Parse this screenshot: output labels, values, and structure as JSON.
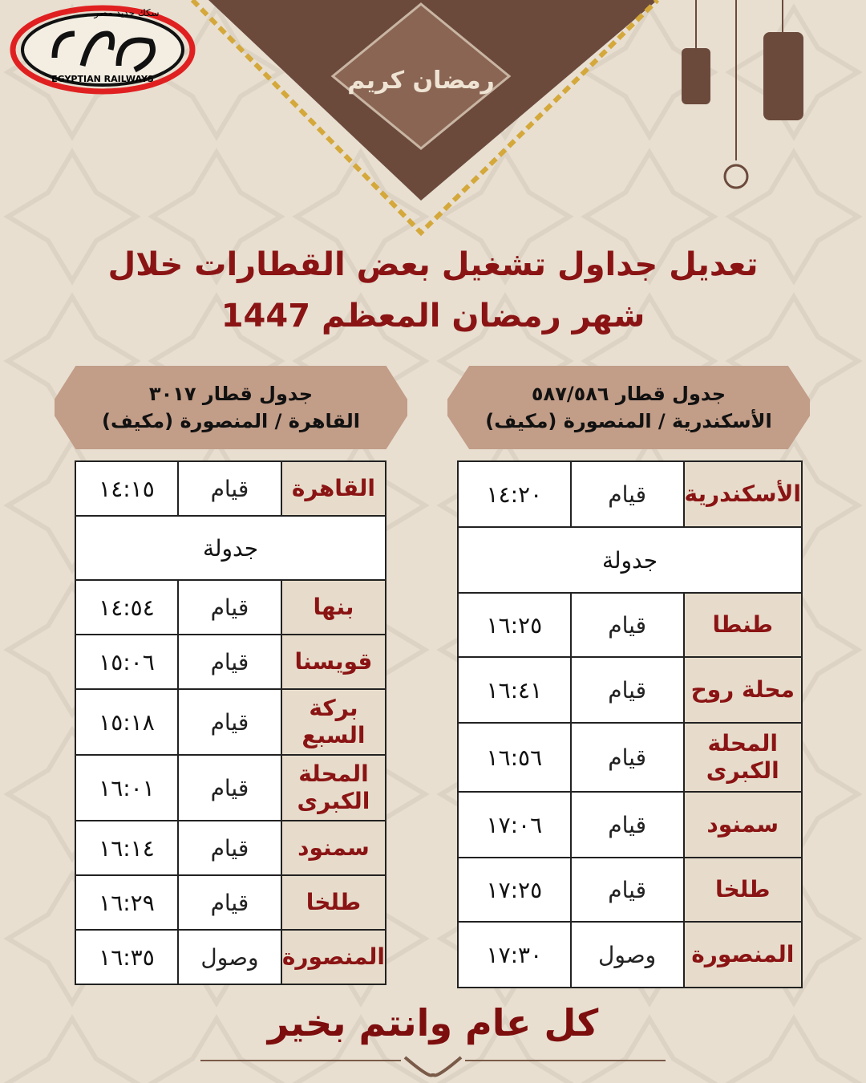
{
  "logo": {
    "arabic": "سكك حديد مصر",
    "english": "EGYPTIAN RAILWAYS",
    "colors": {
      "ring": "#e02020",
      "ink": "#111111"
    }
  },
  "banner": {
    "calligraphy": "رمضان كريم",
    "colors": {
      "diamond": "#6b4a3c",
      "chain": "#d4a83a"
    }
  },
  "title": {
    "line1": "تعديل جداول تشغيل بعض القطارات خلال",
    "line2": "شهر رمضان المعظم 1447",
    "color": "#8a1414"
  },
  "left_schedule": {
    "header_line1": "جدول قطار ٣٠١٧",
    "header_line2": "القاهرة / المنصورة (مكيف)",
    "first_row": {
      "station": "القاهرة",
      "action": "قيام",
      "time": "١٤:١٥"
    },
    "section_label": "جدولة",
    "rows": [
      {
        "station": "بنها",
        "action": "قيام",
        "time": "١٤:٥٤"
      },
      {
        "station": "قويسنا",
        "action": "قيام",
        "time": "١٥:٠٦"
      },
      {
        "station": "بركة السبع",
        "action": "قيام",
        "time": "١٥:١٨"
      },
      {
        "station": "المحلة الكبرى",
        "action": "قيام",
        "time": "١٦:٠١"
      },
      {
        "station": "سمنود",
        "action": "قيام",
        "time": "١٦:١٤"
      },
      {
        "station": "طلخا",
        "action": "قيام",
        "time": "١٦:٢٩"
      },
      {
        "station": "المنصورة",
        "action": "وصول",
        "time": "١٦:٣٥"
      }
    ]
  },
  "right_schedule": {
    "header_line1": "جدول قطار ٥٨٧/٥٨٦",
    "header_line2": "الأسكندرية / المنصورة (مكيف)",
    "first_row": {
      "station": "الأسكندرية",
      "action": "قيام",
      "time": "١٤:٢٠"
    },
    "section_label": "جدولة",
    "rows": [
      {
        "station": "طنطا",
        "action": "قيام",
        "time": "١٦:٢٥"
      },
      {
        "station": "محلة روح",
        "action": "قيام",
        "time": "١٦:٤١"
      },
      {
        "station": "المحلة الكبرى",
        "action": "قيام",
        "time": "١٦:٥٦"
      },
      {
        "station": "سمنود",
        "action": "قيام",
        "time": "١٧:٠٦"
      },
      {
        "station": "طلخا",
        "action": "قيام",
        "time": "١٧:٢٥"
      },
      {
        "station": "المنصورة",
        "action": "وصول",
        "time": "١٧:٣٠"
      }
    ]
  },
  "footer": {
    "greeting": "كل عام وانتم بخير"
  }
}
